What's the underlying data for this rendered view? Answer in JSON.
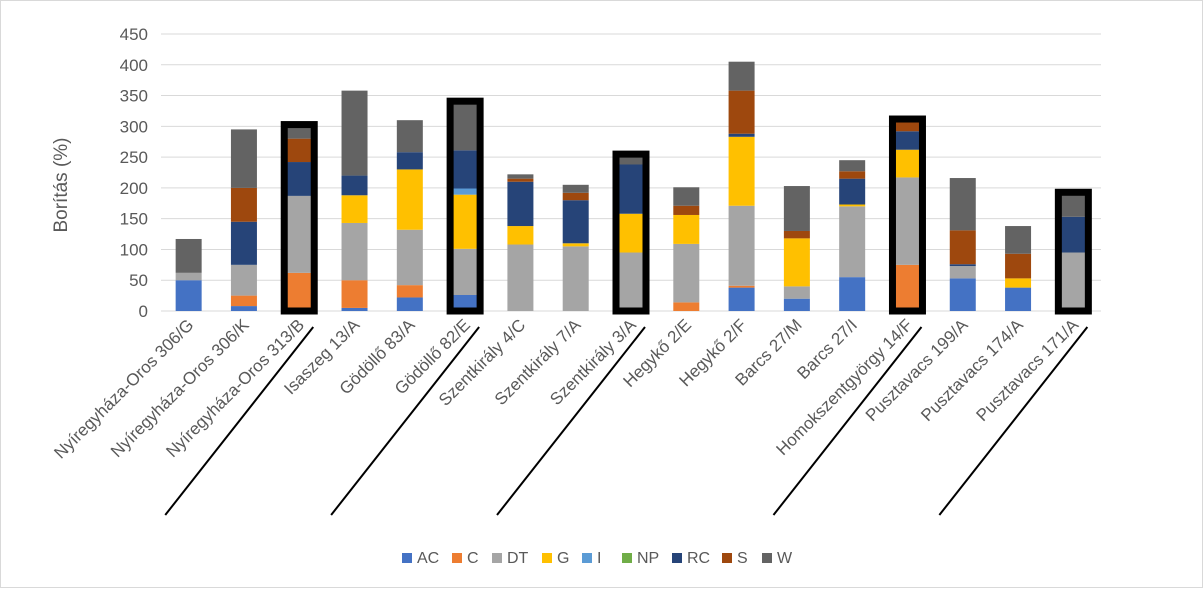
{
  "chart_data": {
    "type": "bar",
    "stacked": true,
    "title": "",
    "xlabel": "",
    "ylabel": "Borítás (%)",
    "ylim": [
      0,
      450
    ],
    "yticks": [
      0,
      50,
      100,
      150,
      200,
      250,
      300,
      350,
      400,
      450
    ],
    "grid": true,
    "legend_position": "bottom",
    "categories": [
      "Nyíregyháza-Oros 306/G",
      "Nyíregyháza-Oros 306/K",
      "Nyíregyháza-Oros 313/B",
      "Isaszeg 13/A",
      "Gödöllő 83/A",
      "Gödöllő 82/E",
      "Szentkirály 4/C",
      "Szentkirály 7/A",
      "Szentkirály 3/A",
      "Hegykő 2/E",
      "Hegykő 2/F",
      "Barcs 27/M",
      "Barcs 27/I",
      "Homokszentgyörgy 14/F",
      "Pusztavacs 199/A",
      "Pusztavacs 174/A",
      "Pusztavacs 171/A"
    ],
    "highlighted_categories": [
      "Nyíregyháza-Oros 313/B",
      "Gödöllő 82/E",
      "Szentkirály 3/A",
      "Homokszentgyörgy 14/F",
      "Pusztavacs 171/A"
    ],
    "series": [
      {
        "name": "AC",
        "color": "#4472C4",
        "values": [
          50,
          8,
          0,
          5,
          22,
          26,
          0,
          0,
          0,
          0,
          38,
          20,
          55,
          0,
          53,
          38,
          0
        ]
      },
      {
        "name": "C",
        "color": "#ED7D31",
        "values": [
          0,
          17,
          62,
          45,
          20,
          0,
          0,
          0,
          0,
          14,
          3,
          0,
          0,
          75,
          0,
          0,
          0
        ]
      },
      {
        "name": "DT",
        "color": "#A5A5A5",
        "values": [
          12,
          50,
          125,
          93,
          90,
          75,
          108,
          105,
          95,
          95,
          130,
          20,
          115,
          142,
          20,
          0,
          95
        ]
      },
      {
        "name": "G",
        "color": "#FFC000",
        "values": [
          0,
          0,
          0,
          45,
          98,
          88,
          30,
          5,
          63,
          47,
          112,
          78,
          3,
          45,
          0,
          15,
          0
        ]
      },
      {
        "name": "I",
        "color": "#5B9BD5",
        "values": [
          0,
          0,
          0,
          0,
          0,
          10,
          0,
          0,
          0,
          0,
          0,
          0,
          0,
          0,
          0,
          0,
          0
        ]
      },
      {
        "name": "NP",
        "color": "#70AD47",
        "values": [
          0,
          0,
          0,
          0,
          0,
          0,
          0,
          0,
          0,
          0,
          0,
          0,
          0,
          0,
          0,
          0,
          0
        ]
      },
      {
        "name": "RC",
        "color": "#264478",
        "values": [
          0,
          70,
          55,
          32,
          28,
          62,
          72,
          70,
          80,
          0,
          5,
          0,
          42,
          30,
          3,
          0,
          58
        ]
      },
      {
        "name": "S",
        "color": "#9E480E",
        "values": [
          0,
          55,
          38,
          0,
          0,
          0,
          5,
          12,
          0,
          15,
          70,
          12,
          12,
          15,
          55,
          40,
          0
        ]
      },
      {
        "name": "W",
        "color": "#636363",
        "values": [
          55,
          95,
          18,
          138,
          52,
          75,
          7,
          13,
          12,
          30,
          47,
          73,
          18,
          0,
          85,
          45,
          35
        ]
      }
    ]
  }
}
